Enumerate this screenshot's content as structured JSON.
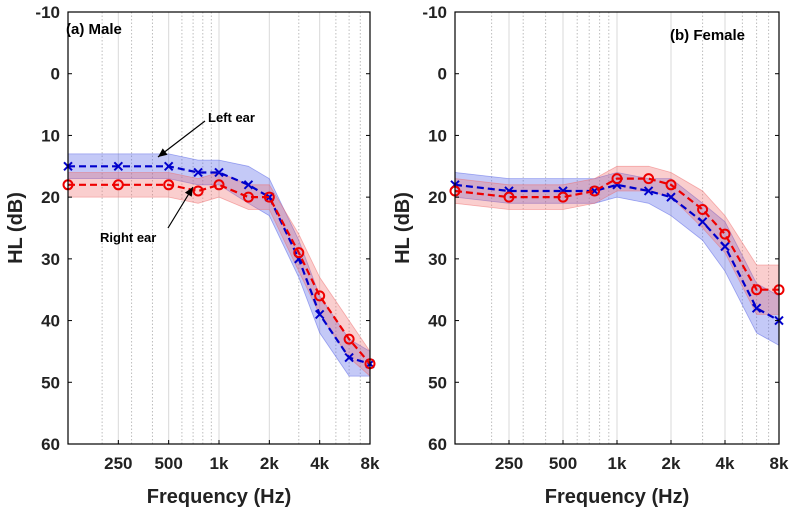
{
  "chart_data": [
    {
      "type": "line",
      "title": "(a) Male",
      "xlabel": "Frequency (Hz)",
      "ylabel": "HL (dB)",
      "xscale": "log",
      "xlim": [
        125,
        8000
      ],
      "ylim": [
        60,
        -10
      ],
      "y_inverted": true,
      "xticks": [
        {
          "value": 250,
          "label": "250"
        },
        {
          "value": 500,
          "label": "500"
        },
        {
          "value": 1000,
          "label": "1k"
        },
        {
          "value": 2000,
          "label": "2k"
        },
        {
          "value": 4000,
          "label": "4k"
        },
        {
          "value": 8000,
          "label": "8k"
        }
      ],
      "yticks": [
        -10,
        0,
        10,
        20,
        30,
        40,
        50,
        60
      ],
      "grid": "x-major-and-minor",
      "series": [
        {
          "name": "Left ear",
          "color": "#0000cc",
          "band_color": "#4d5be6",
          "marker": "x",
          "x": [
            125,
            250,
            500,
            750,
            1000,
            1500,
            2000,
            3000,
            4000,
            6000,
            8000
          ],
          "y": [
            15,
            15,
            15,
            16,
            16,
            18,
            20,
            30,
            39,
            46,
            47
          ],
          "band_lower": [
            13,
            13,
            13,
            14,
            14,
            15,
            17,
            27,
            36,
            43,
            45
          ],
          "band_upper": [
            17,
            17,
            17,
            18,
            18,
            21,
            23,
            33,
            42,
            49,
            49
          ]
        },
        {
          "name": "Right ear",
          "color": "#ee0000",
          "band_color": "#f06a6a",
          "marker": "o",
          "x": [
            125,
            250,
            500,
            750,
            1000,
            1500,
            2000,
            3000,
            4000,
            6000,
            8000
          ],
          "y": [
            18,
            18,
            18,
            19,
            18,
            20,
            20,
            29,
            36,
            43,
            47
          ],
          "band_lower": [
            16,
            16,
            16,
            17,
            16,
            18,
            18,
            26,
            33,
            40,
            45
          ],
          "band_upper": [
            20,
            20,
            20,
            21,
            20,
            22,
            22,
            32,
            39,
            46,
            49
          ]
        }
      ],
      "annotations": [
        {
          "text": "Left ear",
          "points_to_series": "Left ear"
        },
        {
          "text": "Right ear",
          "points_to_series": "Right ear"
        }
      ]
    },
    {
      "type": "line",
      "title": "(b) Female",
      "xlabel": "Frequency (Hz)",
      "ylabel": "HL (dB)",
      "xscale": "log",
      "xlim": [
        125,
        8000
      ],
      "ylim": [
        60,
        -10
      ],
      "y_inverted": true,
      "xticks": [
        {
          "value": 250,
          "label": "250"
        },
        {
          "value": 500,
          "label": "500"
        },
        {
          "value": 1000,
          "label": "1k"
        },
        {
          "value": 2000,
          "label": "2k"
        },
        {
          "value": 4000,
          "label": "4k"
        },
        {
          "value": 8000,
          "label": "8k"
        }
      ],
      "yticks": [
        -10,
        0,
        10,
        20,
        30,
        40,
        50,
        60
      ],
      "grid": "x-major-and-minor",
      "series": [
        {
          "name": "Left ear",
          "color": "#0000cc",
          "band_color": "#4d5be6",
          "marker": "x",
          "x": [
            125,
            250,
            500,
            750,
            1000,
            1500,
            2000,
            3000,
            4000,
            6000,
            8000
          ],
          "y": [
            18,
            19,
            19,
            19,
            18,
            19,
            20,
            24,
            28,
            38,
            40
          ],
          "band_lower": [
            16,
            17,
            17,
            17,
            16,
            17,
            17,
            21,
            24,
            34,
            36
          ],
          "band_upper": [
            20,
            21,
            21,
            21,
            20,
            21,
            23,
            27,
            32,
            42,
            44
          ]
        },
        {
          "name": "Right ear",
          "color": "#ee0000",
          "band_color": "#f06a6a",
          "marker": "o",
          "x": [
            125,
            250,
            500,
            750,
            1000,
            1500,
            2000,
            3000,
            4000,
            6000,
            8000
          ],
          "y": [
            19,
            20,
            20,
            19,
            17,
            17,
            18,
            22,
            26,
            35,
            35
          ],
          "band_lower": [
            17,
            18,
            18,
            17,
            15,
            15,
            16,
            19,
            23,
            31,
            31
          ],
          "band_upper": [
            21,
            22,
            22,
            21,
            19,
            19,
            20,
            25,
            29,
            39,
            39
          ]
        }
      ],
      "annotations": []
    }
  ]
}
